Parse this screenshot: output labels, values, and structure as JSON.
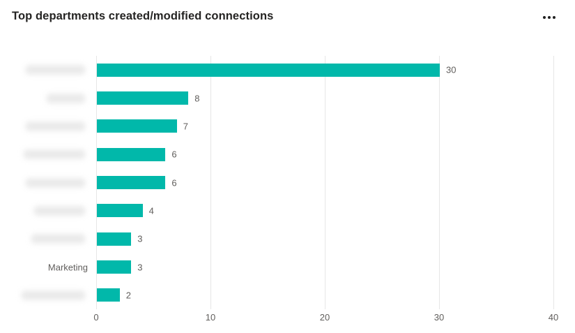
{
  "header": {
    "title": "Top departments created/modified connections",
    "more_options_label": "More options"
  },
  "chart_data": {
    "type": "bar",
    "orientation": "horizontal",
    "title": "Top departments created/modified connections",
    "categories": [
      {
        "label": "",
        "redacted": true,
        "blur_width": 85
      },
      {
        "label": "",
        "redacted": true,
        "blur_width": 55
      },
      {
        "label": "",
        "redacted": true,
        "blur_width": 85
      },
      {
        "label": "",
        "redacted": true,
        "blur_width": 88
      },
      {
        "label": "",
        "redacted": true,
        "blur_width": 85
      },
      {
        "label": "",
        "redacted": true,
        "blur_width": 73
      },
      {
        "label": "",
        "redacted": true,
        "blur_width": 77
      },
      {
        "label": "Marketing",
        "redacted": false,
        "blur_width": 0
      },
      {
        "label": "",
        "redacted": true,
        "blur_width": 91
      }
    ],
    "values": [
      30,
      8,
      7,
      6,
      6,
      4,
      3,
      3,
      2
    ],
    "xlabel": "",
    "ylabel": "",
    "xlim": [
      0,
      40
    ],
    "x_ticks": [
      0,
      10,
      20,
      30,
      40
    ],
    "grid": "vertical-only",
    "legend": "none",
    "bar_color": "#01B8AA",
    "axis_label_color": "#605e5c",
    "title_color": "#252423",
    "gridline_color": "#e6e6e6"
  }
}
